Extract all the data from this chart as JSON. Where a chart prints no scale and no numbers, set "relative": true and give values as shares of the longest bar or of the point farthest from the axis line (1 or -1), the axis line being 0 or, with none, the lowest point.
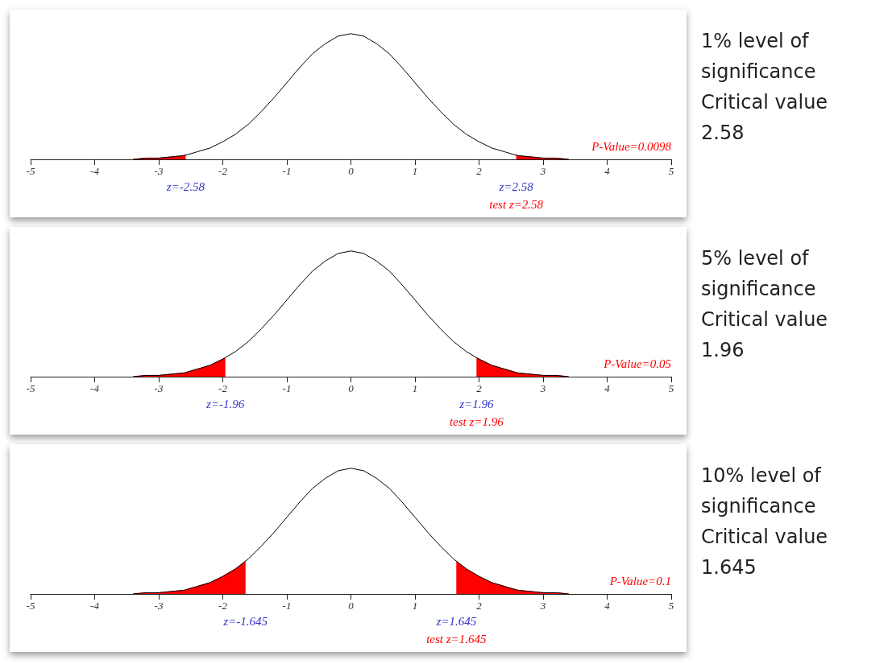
{
  "chart_data": [
    {
      "type": "line",
      "relative": true,
      "xlim": [
        -5,
        5
      ],
      "xticks": [
        -5,
        -4,
        -3,
        -2,
        -1,
        0,
        1,
        2,
        3,
        4,
        5
      ],
      "series": [
        {
          "color": "#000000",
          "x": [
            -3.4,
            -3.2,
            -3.0,
            -2.8,
            -2.6,
            -2.4,
            -2.2,
            -2.0,
            -1.8,
            -1.6,
            -1.4,
            -1.2,
            -1.0,
            -0.8,
            -0.6,
            -0.4,
            -0.2,
            0,
            0.2,
            0.4,
            0.6,
            0.8,
            1.0,
            1.2,
            1.4,
            1.6,
            1.8,
            2.0,
            2.2,
            2.4,
            2.6,
            2.8,
            3.0,
            3.2,
            3.4
          ],
          "values": [
            0.0,
            0.01,
            0.01,
            0.02,
            0.03,
            0.06,
            0.09,
            0.14,
            0.2,
            0.28,
            0.38,
            0.49,
            0.61,
            0.73,
            0.84,
            0.92,
            0.98,
            1.0,
            0.98,
            0.92,
            0.84,
            0.73,
            0.61,
            0.49,
            0.38,
            0.28,
            0.2,
            0.14,
            0.09,
            0.06,
            0.03,
            0.02,
            0.01,
            0.01,
            0.0
          ]
        },
        {
          "type": "area",
          "color": "#ff0000",
          "x": [
            -3.4,
            -3.2,
            -3.0,
            -2.8,
            -2.6,
            -2.58
          ],
          "values": [
            0.0,
            0.01,
            0.01,
            0.02,
            0.03,
            0.04
          ]
        },
        {
          "type": "area",
          "color": "#ff0000",
          "x": [
            2.58,
            2.6,
            2.8,
            3.0,
            3.2,
            3.4
          ],
          "values": [
            0.04,
            0.03,
            0.02,
            0.01,
            0.01,
            0.0
          ]
        }
      ],
      "annotations": [
        "1% level of significance Critical value 2.58",
        "P-Value=0.0098",
        "test z=2.58",
        {
          "text": "z=-2.58",
          "x": -2.58,
          "y": 0
        },
        {
          "text": "z=2.58",
          "x": 2.58,
          "y": 0
        }
      ]
    },
    {
      "type": "line",
      "relative": true,
      "xlim": [
        -5,
        5
      ],
      "xticks": [
        -5,
        -4,
        -3,
        -2,
        -1,
        0,
        1,
        2,
        3,
        4,
        5
      ],
      "series": [
        {
          "color": "#000000",
          "x": [
            -3.4,
            -3.2,
            -3.0,
            -2.8,
            -2.6,
            -2.4,
            -2.2,
            -2.0,
            -1.8,
            -1.6,
            -1.4,
            -1.2,
            -1.0,
            -0.8,
            -0.6,
            -0.4,
            -0.2,
            0,
            0.2,
            0.4,
            0.6,
            0.8,
            1.0,
            1.2,
            1.4,
            1.6,
            1.8,
            2.0,
            2.2,
            2.4,
            2.6,
            2.8,
            3.0,
            3.2,
            3.4
          ],
          "values": [
            0.0,
            0.01,
            0.01,
            0.02,
            0.03,
            0.06,
            0.09,
            0.14,
            0.2,
            0.28,
            0.38,
            0.49,
            0.61,
            0.73,
            0.84,
            0.92,
            0.98,
            1.0,
            0.98,
            0.92,
            0.84,
            0.73,
            0.61,
            0.49,
            0.38,
            0.28,
            0.2,
            0.14,
            0.09,
            0.06,
            0.03,
            0.02,
            0.01,
            0.01,
            0.0
          ]
        },
        {
          "type": "area",
          "color": "#ff0000",
          "x": [
            -3.4,
            -3.2,
            -3.0,
            -2.8,
            -2.6,
            -2.4,
            -2.2,
            -2.0,
            -1.96
          ],
          "values": [
            0.0,
            0.01,
            0.01,
            0.02,
            0.03,
            0.06,
            0.09,
            0.14,
            0.15
          ]
        },
        {
          "type": "area",
          "color": "#ff0000",
          "x": [
            1.96,
            2.0,
            2.2,
            2.4,
            2.6,
            2.8,
            3.0,
            3.2,
            3.4
          ],
          "values": [
            0.15,
            0.14,
            0.09,
            0.06,
            0.03,
            0.02,
            0.01,
            0.01,
            0.0
          ]
        }
      ],
      "annotations": [
        "5% level of significance Critical value 1.96",
        "P-Value=0.05",
        "test z=1.96",
        {
          "text": "z=-1.96",
          "x": -1.96,
          "y": 0
        },
        {
          "text": "z=1.96",
          "x": 1.96,
          "y": 0
        }
      ]
    },
    {
      "type": "line",
      "relative": true,
      "xlim": [
        -5,
        5
      ],
      "xticks": [
        -5,
        -4,
        -3,
        -2,
        -1,
        0,
        1,
        2,
        3,
        4,
        5
      ],
      "series": [
        {
          "color": "#000000",
          "x": [
            -3.4,
            -3.2,
            -3.0,
            -2.8,
            -2.6,
            -2.4,
            -2.2,
            -2.0,
            -1.8,
            -1.6,
            -1.4,
            -1.2,
            -1.0,
            -0.8,
            -0.6,
            -0.4,
            -0.2,
            0,
            0.2,
            0.4,
            0.6,
            0.8,
            1.0,
            1.2,
            1.4,
            1.6,
            1.8,
            2.0,
            2.2,
            2.4,
            2.6,
            2.8,
            3.0,
            3.2,
            3.4
          ],
          "values": [
            0.0,
            0.01,
            0.01,
            0.02,
            0.03,
            0.06,
            0.09,
            0.14,
            0.2,
            0.28,
            0.38,
            0.49,
            0.61,
            0.73,
            0.84,
            0.92,
            0.98,
            1.0,
            0.98,
            0.92,
            0.84,
            0.73,
            0.61,
            0.49,
            0.38,
            0.28,
            0.2,
            0.14,
            0.09,
            0.06,
            0.03,
            0.02,
            0.01,
            0.01,
            0.0
          ]
        },
        {
          "type": "area",
          "color": "#ff0000",
          "x": [
            -3.4,
            -3.2,
            -3.0,
            -2.8,
            -2.6,
            -2.4,
            -2.2,
            -2.0,
            -1.8,
            -1.645
          ],
          "values": [
            0.0,
            0.01,
            0.01,
            0.02,
            0.03,
            0.06,
            0.09,
            0.14,
            0.2,
            0.26
          ]
        },
        {
          "type": "area",
          "color": "#ff0000",
          "x": [
            1.645,
            1.8,
            2.0,
            2.2,
            2.4,
            2.6,
            2.8,
            3.0,
            3.2,
            3.4
          ],
          "values": [
            0.26,
            0.2,
            0.14,
            0.09,
            0.06,
            0.03,
            0.02,
            0.01,
            0.01,
            0.0
          ]
        }
      ],
      "annotations": [
        "10% level of significance Critical value 1.645",
        "P-Value=0.1",
        "test z=1.645",
        {
          "text": "z=-1.645",
          "x": -1.645,
          "y": 0
        },
        {
          "text": "z=1.645",
          "x": 1.645,
          "y": 0
        }
      ]
    }
  ]
}
